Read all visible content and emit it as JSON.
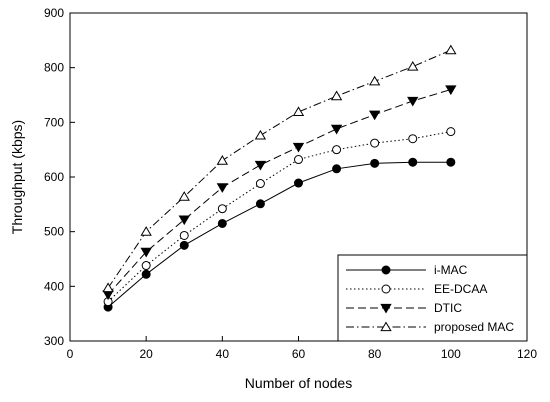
{
  "chart_data": {
    "type": "line",
    "xlabel": "Number of nodes",
    "ylabel": "Throughput (kbps)",
    "xlim": [
      0,
      120
    ],
    "ylim": [
      300,
      900
    ],
    "xticks": [
      0,
      20,
      40,
      60,
      80,
      100,
      120
    ],
    "yticks": [
      300,
      400,
      500,
      600,
      700,
      800,
      900
    ],
    "grid": false,
    "legend_position": "bottom-right",
    "x": [
      10,
      20,
      30,
      40,
      50,
      60,
      70,
      80,
      90,
      100
    ],
    "series": [
      {
        "name": "i-MAC",
        "marker": "filled-circle",
        "line_style": "solid",
        "values": [
          362,
          422,
          475,
          515,
          551,
          589,
          615,
          625,
          627,
          627
        ]
      },
      {
        "name": "EE-DCAA",
        "marker": "open-circle",
        "line_style": "dotted",
        "values": [
          372,
          438,
          493,
          542,
          588,
          632,
          650,
          662,
          670,
          683
        ]
      },
      {
        "name": "DTIC",
        "marker": "filled-triangle-down",
        "line_style": "dashed",
        "values": [
          385,
          463,
          522,
          581,
          622,
          655,
          688,
          714,
          739,
          760
        ]
      },
      {
        "name": "proposed MAC",
        "marker": "open-triangle-up",
        "line_style": "dash-dot",
        "values": [
          397,
          500,
          564,
          630,
          676,
          719,
          748,
          775,
          802,
          832
        ]
      }
    ]
  }
}
